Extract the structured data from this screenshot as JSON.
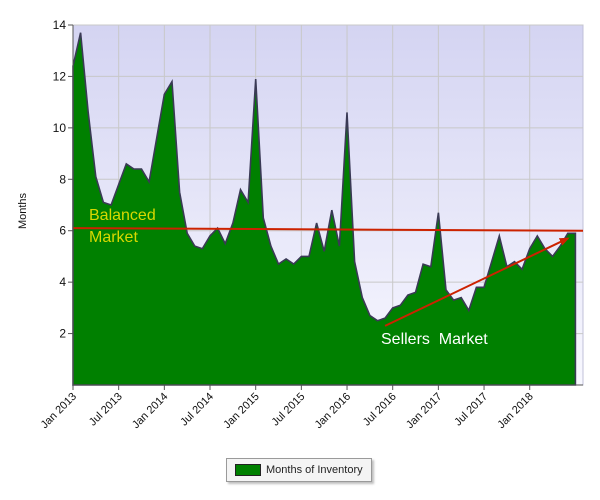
{
  "chart_data": {
    "type": "area",
    "title": "",
    "xlabel": "",
    "ylabel": "Months",
    "ylim": [
      0,
      14
    ],
    "yticks": [
      2,
      4,
      6,
      8,
      10,
      12,
      14
    ],
    "x_tick_labels": [
      "Jan 2013",
      "Jul 2013",
      "Jan 2014",
      "Jul 2014",
      "Jan 2015",
      "Jul 2015",
      "Jan 2016",
      "Jul 2016",
      "Jan 2017",
      "Jul 2017",
      "Jan 2018"
    ],
    "grid": true,
    "legend_position": "bottom-center",
    "colors": {
      "fill": "#008000",
      "line": "#3a3a55",
      "annotation": "#cc2200",
      "plot_bg_top": "#d4d4f2",
      "plot_bg_bottom": "#f8f8ff"
    },
    "series": [
      {
        "name": "Months of Inventory",
        "x": [
          "2013-01",
          "2013-02",
          "2013-03",
          "2013-04",
          "2013-05",
          "2013-06",
          "2013-07",
          "2013-08",
          "2013-09",
          "2013-10",
          "2013-11",
          "2013-12",
          "2014-01",
          "2014-02",
          "2014-03",
          "2014-04",
          "2014-05",
          "2014-06",
          "2014-07",
          "2014-08",
          "2014-09",
          "2014-10",
          "2014-11",
          "2014-12",
          "2015-01",
          "2015-02",
          "2015-03",
          "2015-04",
          "2015-05",
          "2015-06",
          "2015-07",
          "2015-08",
          "2015-09",
          "2015-10",
          "2015-11",
          "2015-12",
          "2016-01",
          "2016-02",
          "2016-03",
          "2016-04",
          "2016-05",
          "2016-06",
          "2016-07",
          "2016-08",
          "2016-09",
          "2016-10",
          "2016-11",
          "2016-12",
          "2017-01",
          "2017-02",
          "2017-03",
          "2017-04",
          "2017-05",
          "2017-06",
          "2017-07",
          "2017-08",
          "2017-09",
          "2017-10",
          "2017-11",
          "2017-12",
          "2018-01",
          "2018-02",
          "2018-03",
          "2018-04",
          "2018-05",
          "2018-06",
          "2018-07"
        ],
        "values": [
          12.4,
          13.7,
          10.6,
          8.1,
          7.1,
          7.0,
          7.8,
          8.6,
          8.4,
          8.4,
          7.9,
          9.6,
          11.3,
          11.8,
          7.5,
          5.9,
          5.4,
          5.3,
          5.8,
          6.1,
          5.5,
          6.3,
          7.6,
          7.1,
          11.9,
          6.5,
          5.4,
          4.7,
          4.9,
          4.7,
          5.0,
          5.0,
          6.3,
          5.2,
          6.8,
          5.4,
          10.6,
          4.8,
          3.4,
          2.7,
          2.5,
          2.6,
          3.0,
          3.1,
          3.5,
          3.6,
          4.7,
          4.6,
          6.7,
          3.7,
          3.3,
          3.4,
          2.9,
          3.8,
          3.8,
          4.8,
          5.8,
          4.6,
          4.8,
          4.5,
          5.3,
          5.8,
          5.3,
          5.0,
          5.4,
          5.9,
          5.9
        ]
      }
    ],
    "annotations": [
      {
        "text_lines": [
          "Balanced",
          "Market"
        ],
        "color": "#d8d800"
      },
      {
        "text": "Sellers  Market",
        "color": "#ffffff"
      }
    ],
    "reference_line": {
      "y_start": 6.1,
      "y_end": 6.0
    },
    "trend_arrow": {
      "from": [
        "2016-06",
        2.3
      ],
      "to": [
        "2018-06",
        5.7
      ]
    }
  }
}
